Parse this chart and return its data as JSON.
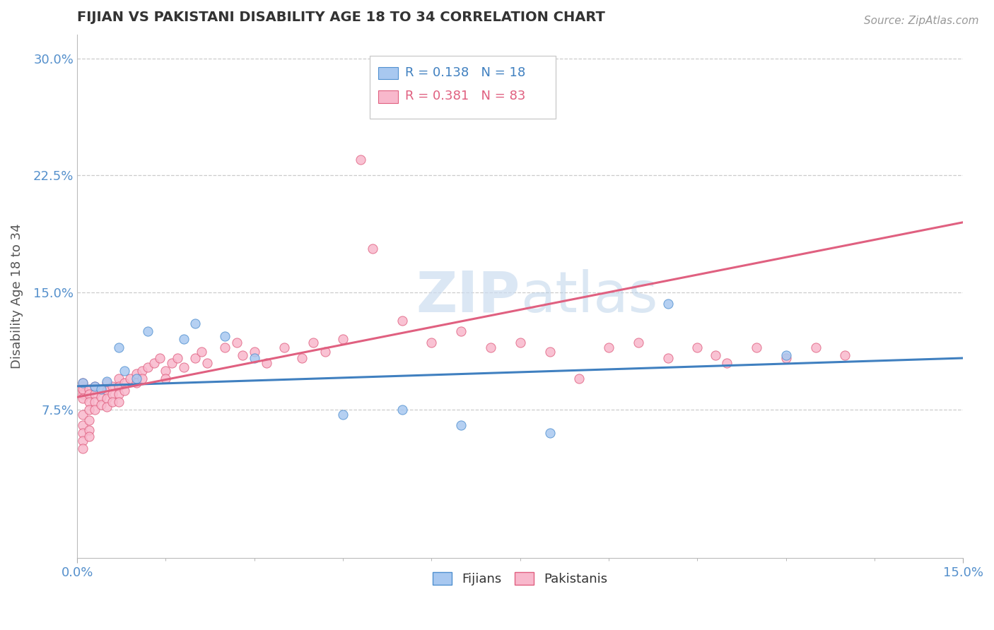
{
  "title": "FIJIAN VS PAKISTANI DISABILITY AGE 18 TO 34 CORRELATION CHART",
  "source": "Source: ZipAtlas.com",
  "xlim": [
    0.0,
    0.15
  ],
  "ylim": [
    -0.02,
    0.315
  ],
  "ytick_positions": [
    0.075,
    0.15,
    0.225,
    0.3
  ],
  "ytick_labels": [
    "7.5%",
    "15.0%",
    "22.5%",
    "30.0%"
  ],
  "xtick_positions": [
    0.0,
    0.15
  ],
  "xtick_labels": [
    "0.0%",
    "15.0%"
  ],
  "legend_r_fijian": "0.138",
  "legend_n_fijian": "18",
  "legend_r_pakistani": "0.381",
  "legend_n_pakistani": "83",
  "fijian_fill": "#a8c8f0",
  "fijian_edge": "#5090d0",
  "pakistani_fill": "#f8b8cc",
  "pakistani_edge": "#e06080",
  "fijian_line_color": "#4080c0",
  "pakistani_line_color": "#e06080",
  "watermark_color": "#ccddf0",
  "tick_color": "#5590cc",
  "title_color": "#333333",
  "ylabel_color": "#555555",
  "grid_color": "#cccccc",
  "fij_x": [
    0.001,
    0.003,
    0.004,
    0.005,
    0.007,
    0.008,
    0.01,
    0.012,
    0.018,
    0.02,
    0.025,
    0.03,
    0.045,
    0.055,
    0.065,
    0.08,
    0.1,
    0.12
  ],
  "fij_y": [
    0.092,
    0.09,
    0.088,
    0.093,
    0.115,
    0.1,
    0.095,
    0.125,
    0.12,
    0.13,
    0.122,
    0.108,
    0.072,
    0.075,
    0.065,
    0.06,
    0.143,
    0.11
  ],
  "pak_x": [
    0.001,
    0.001,
    0.001,
    0.001,
    0.001,
    0.001,
    0.001,
    0.001,
    0.001,
    0.001,
    0.001,
    0.002,
    0.002,
    0.002,
    0.002,
    0.002,
    0.002,
    0.002,
    0.003,
    0.003,
    0.003,
    0.003,
    0.004,
    0.004,
    0.004,
    0.005,
    0.005,
    0.005,
    0.005,
    0.006,
    0.006,
    0.006,
    0.007,
    0.007,
    0.007,
    0.007,
    0.008,
    0.008,
    0.009,
    0.01,
    0.01,
    0.011,
    0.011,
    0.012,
    0.013,
    0.014,
    0.015,
    0.015,
    0.016,
    0.017,
    0.018,
    0.02,
    0.021,
    0.022,
    0.025,
    0.027,
    0.028,
    0.03,
    0.032,
    0.035,
    0.038,
    0.04,
    0.042,
    0.045,
    0.048,
    0.05,
    0.055,
    0.06,
    0.065,
    0.07,
    0.075,
    0.08,
    0.085,
    0.09,
    0.095,
    0.1,
    0.105,
    0.108,
    0.11,
    0.115,
    0.12,
    0.125,
    0.13
  ],
  "pak_y": [
    0.09,
    0.087,
    0.092,
    0.085,
    0.088,
    0.072,
    0.065,
    0.06,
    0.055,
    0.05,
    0.082,
    0.088,
    0.085,
    0.08,
    0.075,
    0.068,
    0.062,
    0.058,
    0.09,
    0.085,
    0.08,
    0.075,
    0.088,
    0.083,
    0.078,
    0.092,
    0.087,
    0.082,
    0.077,
    0.09,
    0.085,
    0.08,
    0.095,
    0.09,
    0.085,
    0.08,
    0.092,
    0.087,
    0.095,
    0.098,
    0.092,
    0.1,
    0.095,
    0.102,
    0.105,
    0.108,
    0.1,
    0.095,
    0.105,
    0.108,
    0.102,
    0.108,
    0.112,
    0.105,
    0.115,
    0.118,
    0.11,
    0.112,
    0.105,
    0.115,
    0.108,
    0.118,
    0.112,
    0.12,
    0.235,
    0.178,
    0.132,
    0.118,
    0.125,
    0.115,
    0.118,
    0.112,
    0.095,
    0.115,
    0.118,
    0.108,
    0.115,
    0.11,
    0.105,
    0.115,
    0.108,
    0.115,
    0.11
  ],
  "fij_line_x0": 0.0,
  "fij_line_x1": 0.15,
  "fij_line_y0": 0.09,
  "fij_line_y1": 0.108,
  "pak_line_x0": 0.0,
  "pak_line_x1": 0.15,
  "pak_line_y0": 0.083,
  "pak_line_y1": 0.195
}
